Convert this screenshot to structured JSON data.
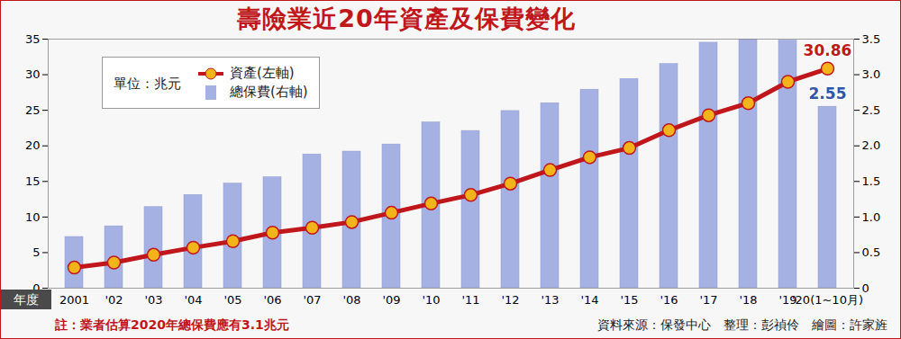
{
  "chart_data": {
    "type": "bar",
    "title": "壽險業近20年資產及保費變化",
    "legend_title": "單位：兆元",
    "xlabel": "年度",
    "note": "註：業者估算2020年總保費應有3.1兆元",
    "source": "資料來源：保發中心　整理：彭禎伶　繪圖：許家旌",
    "categories": [
      "2001",
      "'02",
      "'03",
      "'04",
      "'05",
      "'06",
      "'07",
      "'08",
      "'09",
      "'10",
      "'11",
      "'12",
      "'13",
      "'14",
      "'15",
      "'16",
      "'17",
      "'18",
      "'19",
      "'20(1~10月)"
    ],
    "series": [
      {
        "name": "資產(左軸)",
        "type": "line",
        "color": "#c0171c",
        "marker": "circle",
        "axis": "y",
        "values": [
          2.9,
          3.6,
          4.7,
          5.7,
          6.6,
          7.8,
          8.5,
          9.3,
          10.6,
          11.9,
          13.1,
          14.7,
          16.6,
          18.4,
          19.7,
          22.2,
          24.3,
          26.0,
          29.0,
          30.86
        ]
      },
      {
        "name": "總保費(右軸)",
        "type": "bar",
        "color": "#a6b1e3",
        "axis": "y2",
        "values": [
          0.72,
          0.87,
          1.14,
          1.31,
          1.47,
          1.56,
          1.88,
          1.92,
          2.02,
          2.33,
          2.21,
          2.49,
          2.6,
          2.79,
          2.94,
          3.15,
          3.45,
          3.5,
          3.48,
          2.55
        ]
      }
    ],
    "annotations": [
      {
        "series": "資產(左軸)",
        "category": "'20(1~10月)",
        "text": "30.86"
      },
      {
        "series": "總保費(右軸)",
        "category": "'20(1~10月)",
        "text": "2.55"
      }
    ],
    "ylim": [
      0,
      35
    ],
    "yticks": [
      0,
      5,
      10,
      15,
      20,
      25,
      30,
      35
    ],
    "y2lim": [
      0,
      3.5
    ],
    "y2ticks": [
      0,
      0.5,
      {
        "value": 1,
        "label": "1.0"
      },
      1.5,
      {
        "value": 2,
        "label": "2.0"
      },
      2.5,
      {
        "value": 3,
        "label": "3.0"
      },
      3.5
    ],
    "legend": "top-left",
    "grid": false
  }
}
